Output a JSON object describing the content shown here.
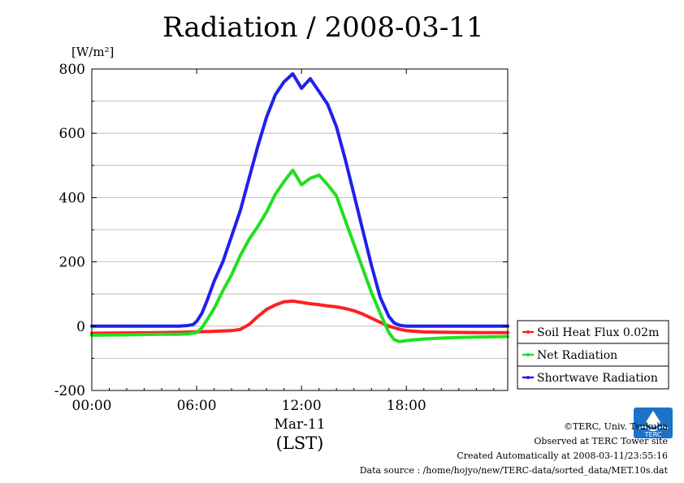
{
  "chart_data": {
    "type": "line",
    "title": "Radiation / 2008-03-11",
    "ylabel": "[W/m²]",
    "xlabel": "(LST)",
    "x_date_label": "Mar-11",
    "x_unit": "hour",
    "xlim": [
      0,
      23.8
    ],
    "ylim": [
      -200,
      800
    ],
    "yticks": [
      -200,
      0,
      200,
      400,
      600,
      800
    ],
    "xticks": [
      0,
      6,
      12,
      18
    ],
    "xtick_labels": [
      "00:00",
      "06:00",
      "12:00",
      "18:00"
    ],
    "grid": true,
    "legend_position": "right",
    "series": [
      {
        "name": "Soil Heat Flux 0.02m",
        "color": "#ff2020",
        "x": [
          0,
          2,
          4,
          6,
          7,
          8,
          8.5,
          9,
          9.5,
          10,
          10.5,
          11,
          11.5,
          12,
          12.5,
          13,
          13.5,
          14,
          14.5,
          15,
          15.5,
          16,
          16.5,
          17,
          17.5,
          18,
          19,
          20,
          22,
          23.8
        ],
        "y": [
          -22,
          -21,
          -20,
          -18,
          -16,
          -14,
          -10,
          5,
          30,
          52,
          66,
          76,
          78,
          74,
          70,
          67,
          63,
          60,
          55,
          48,
          38,
          25,
          12,
          0,
          -8,
          -14,
          -18,
          -19,
          -20,
          -20
        ]
      },
      {
        "name": "Net Radiation",
        "color": "#20e020",
        "x": [
          0,
          2,
          4,
          5,
          5.5,
          6,
          6.3,
          6.6,
          7,
          7.5,
          8,
          8.5,
          9,
          9.5,
          10,
          10.5,
          11,
          11.5,
          12,
          12.5,
          13,
          13.5,
          14,
          14.5,
          15,
          15.5,
          16,
          16.5,
          17,
          17.3,
          17.6,
          18,
          19,
          20,
          21,
          22,
          23,
          23.8
        ],
        "y": [
          -28,
          -27,
          -25,
          -25,
          -24,
          -20,
          -5,
          20,
          55,
          110,
          160,
          220,
          270,
          310,
          355,
          410,
          450,
          485,
          440,
          460,
          470,
          440,
          405,
          330,
          255,
          180,
          105,
          40,
          -20,
          -42,
          -48,
          -45,
          -40,
          -37,
          -35,
          -34,
          -33,
          -32
        ]
      },
      {
        "name": "Shortwave Radiation",
        "color": "#2020ee",
        "x": [
          0,
          2,
          4,
          5,
          5.5,
          5.8,
          6,
          6.3,
          6.6,
          7,
          7.5,
          8,
          8.5,
          9,
          9.5,
          10,
          10.5,
          11,
          11.5,
          12,
          12.5,
          13,
          13.5,
          14,
          14.5,
          15,
          15.5,
          16,
          16.5,
          17,
          17.3,
          17.6,
          18,
          19,
          20,
          21,
          22,
          23,
          23.8
        ],
        "y": [
          0,
          0,
          0,
          0,
          2,
          5,
          15,
          40,
          80,
          140,
          200,
          280,
          360,
          460,
          560,
          650,
          720,
          760,
          785,
          740,
          770,
          730,
          690,
          620,
          520,
          410,
          300,
          190,
          90,
          30,
          10,
          3,
          0,
          0,
          0,
          0,
          0,
          0,
          0
        ]
      }
    ]
  },
  "footer": {
    "copyright": "©TERC, Univ. Tsukuba",
    "observed": "Observed at TERC Tower site",
    "created": "Created Automatically at 2008-03-11/23:55:16",
    "source": "Data source : /home/hojyo/new/TERC-data/sorted_data/MET.10s.dat"
  },
  "logo_text": "TERC"
}
